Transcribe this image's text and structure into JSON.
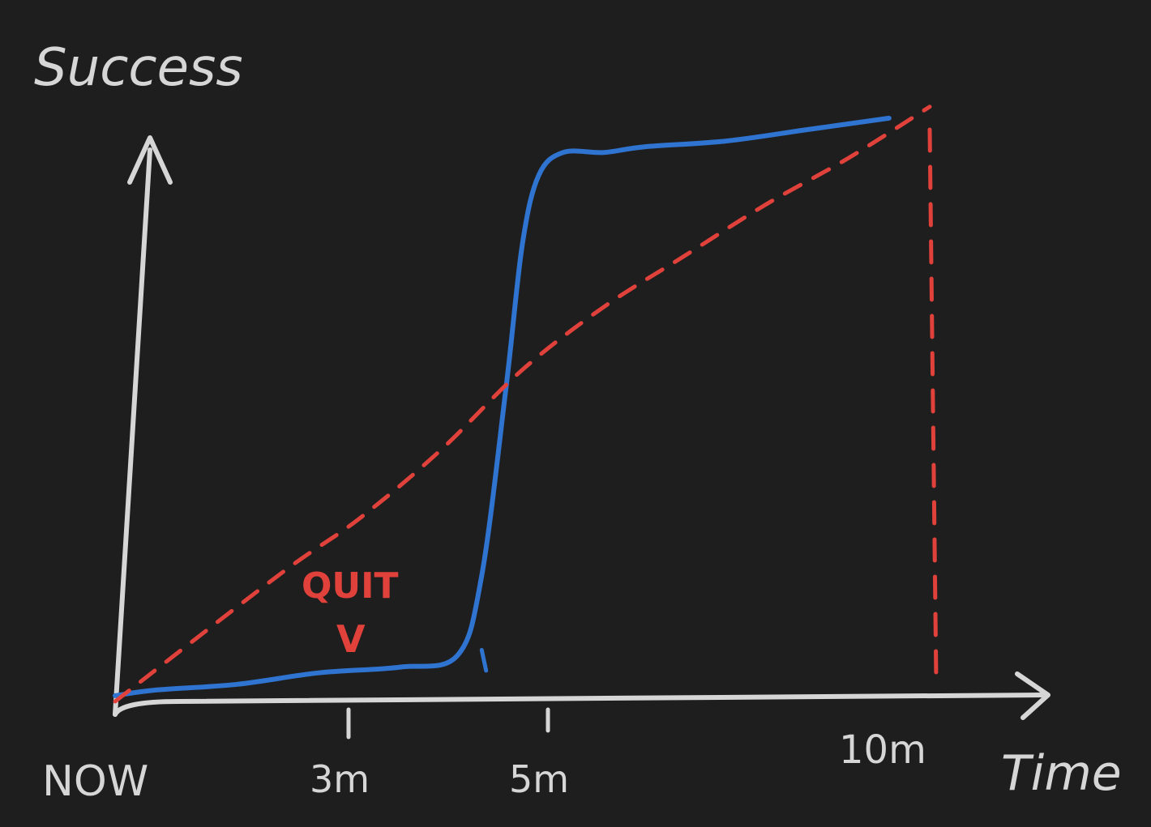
{
  "chart_data": {
    "type": "line",
    "title": "",
    "ylabel": "Success",
    "xlabel": "Time",
    "x_ticks": [
      {
        "label": "NOW",
        "x": 0
      },
      {
        "label": "3m",
        "x": 3
      },
      {
        "label": "5m",
        "x": 5
      },
      {
        "label": "10m",
        "x": 10
      }
    ],
    "xlim": [
      0,
      12
    ],
    "ylim": [
      0,
      1
    ],
    "grid": false,
    "series": [
      {
        "style": "solid",
        "color": "#2f74d0",
        "points": [
          [
            0,
            0.01
          ],
          [
            0.5,
            0.02
          ],
          [
            1.5,
            0.03
          ],
          [
            2.5,
            0.05
          ],
          [
            3.5,
            0.06
          ],
          [
            4.2,
            0.08
          ],
          [
            4.5,
            0.22
          ],
          [
            4.8,
            0.55
          ],
          [
            5.0,
            0.8
          ],
          [
            5.2,
            0.92
          ],
          [
            5.5,
            0.96
          ],
          [
            6.0,
            0.96
          ],
          [
            6.5,
            0.97
          ],
          [
            7.5,
            0.98
          ],
          [
            8.5,
            1.0
          ],
          [
            9.5,
            1.02
          ]
        ]
      },
      {
        "style": "dashed",
        "color": "#e0413a",
        "points": [
          [
            0,
            0.0
          ],
          [
            2,
            0.22
          ],
          [
            3,
            0.32
          ],
          [
            4,
            0.44
          ],
          [
            5,
            0.58
          ],
          [
            6,
            0.69
          ],
          [
            7,
            0.78
          ],
          [
            8,
            0.87
          ],
          [
            9,
            0.95
          ],
          [
            10,
            1.04
          ]
        ]
      }
    ],
    "markers": [
      {
        "x": 4.5,
        "style": "dashed",
        "color": "#2f74d0"
      },
      {
        "x": 10,
        "style": "dashed",
        "color": "#e0413a"
      }
    ],
    "annotations": [
      {
        "text": "QUIT",
        "color": "#e0413a"
      },
      {
        "text": "V",
        "color": "#e0413a"
      }
    ]
  }
}
